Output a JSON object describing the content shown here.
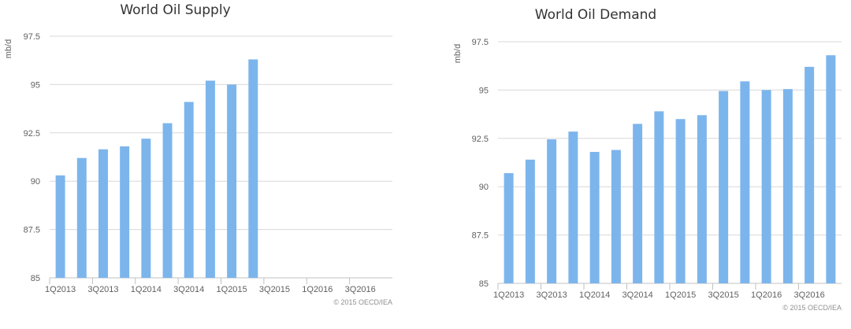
{
  "chart_data": [
    {
      "type": "bar",
      "title": "World Oil Supply",
      "ylabel": "mb/d",
      "xlabel": "",
      "credit": "© 2015 OECD/IEA",
      "color": "#7cb5ec",
      "ylim": [
        85,
        97.5
      ],
      "yticks": [
        85,
        87.5,
        90,
        92.5,
        95,
        97.5
      ],
      "ytick_labels": [
        "85",
        "87.5",
        "90",
        "92.5",
        "95",
        "97.5"
      ],
      "categories": [
        "1Q2013",
        "2Q2013",
        "3Q2013",
        "4Q2013",
        "1Q2014",
        "2Q2014",
        "3Q2014",
        "4Q2014",
        "1Q2015",
        "2Q2015",
        "3Q2015",
        "4Q2015",
        "1Q2016",
        "2Q2016",
        "3Q2016",
        "4Q2016"
      ],
      "xtick_labels": [
        "1Q2013",
        "3Q2013",
        "1Q2014",
        "3Q2014",
        "1Q2015",
        "3Q2015",
        "1Q2016",
        "3Q2016"
      ],
      "values": [
        90.3,
        91.2,
        91.65,
        91.8,
        92.2,
        93.0,
        94.1,
        95.2,
        95.0,
        96.3,
        null,
        null,
        null,
        null,
        null,
        null
      ],
      "grid": true,
      "legend": "none"
    },
    {
      "type": "bar",
      "title": "World Oil Demand",
      "ylabel": "mb/d",
      "xlabel": "",
      "credit": "© 2015 OECD/IEA",
      "color": "#7cb5ec",
      "ylim": [
        85,
        97.5
      ],
      "yticks": [
        85,
        87.5,
        90,
        92.5,
        95,
        97.5
      ],
      "ytick_labels": [
        "85",
        "87.5",
        "90",
        "92.5",
        "95",
        "97.5"
      ],
      "categories": [
        "1Q2013",
        "2Q2013",
        "3Q2013",
        "4Q2013",
        "1Q2014",
        "2Q2014",
        "3Q2014",
        "4Q2014",
        "1Q2015",
        "2Q2015",
        "3Q2015",
        "4Q2015",
        "1Q2016",
        "2Q2016",
        "3Q2016",
        "4Q2016"
      ],
      "xtick_labels": [
        "1Q2013",
        "3Q2013",
        "1Q2014",
        "3Q2014",
        "1Q2015",
        "3Q2015",
        "1Q2016",
        "3Q2016"
      ],
      "values": [
        90.7,
        91.4,
        92.45,
        92.85,
        91.8,
        91.9,
        93.25,
        93.9,
        93.5,
        93.7,
        94.95,
        95.45,
        95.0,
        95.05,
        96.2,
        96.8
      ],
      "grid": true,
      "legend": "none"
    }
  ]
}
